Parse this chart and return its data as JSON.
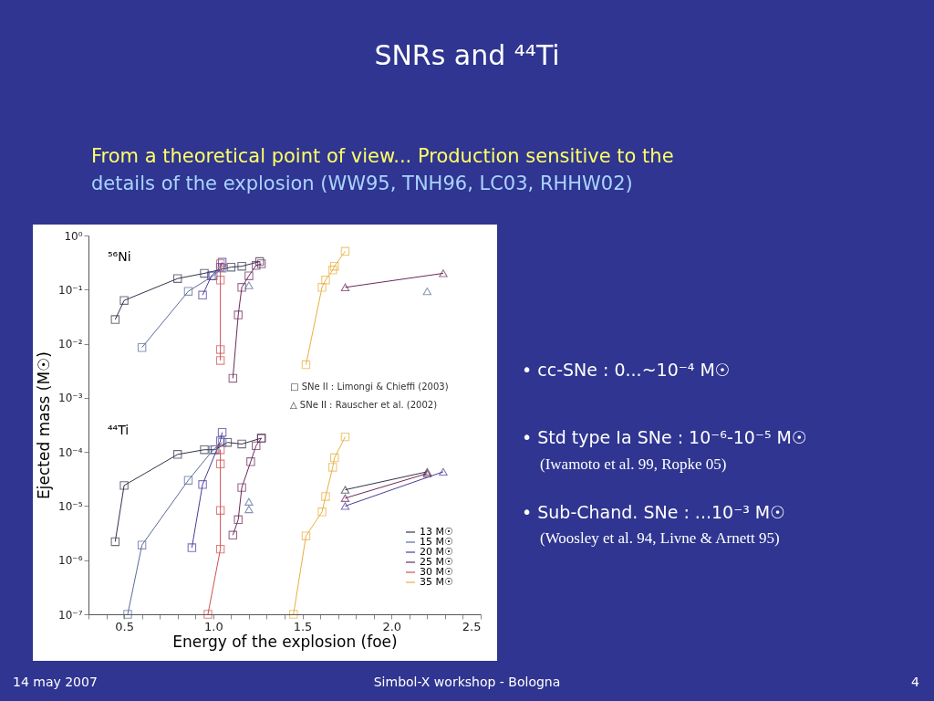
{
  "chart_data": {
    "type": "line",
    "title": "SNRs and ⁴⁴Ti",
    "subtitle": "From a theoretical point of view... Production sensitive to the details of the explosion (WW95, TNH96, LC03, RHHW02)",
    "xlabel": "Energy of the explosion (foe)",
    "ylabel": "Ejected mass (M☉)",
    "xlim": [
      0.3,
      2.5
    ],
    "ylim": [
      1e-07,
      1
    ],
    "log": "y",
    "grid": false,
    "legend": "bottom right",
    "line_style": "solid",
    "xticks": [
      {
        "value": 0.3,
        "label": null
      },
      {
        "value": 0.4,
        "label": null
      },
      {
        "value": 0.5,
        "label": "0.5"
      },
      {
        "value": 0.6,
        "label": null
      },
      {
        "value": 0.7,
        "label": null
      },
      {
        "value": 0.8,
        "label": null
      },
      {
        "value": 0.9,
        "label": null
      },
      {
        "value": 1.0,
        "label": "1.0"
      },
      {
        "value": 1.1,
        "label": null
      },
      {
        "value": 1.2,
        "label": null
      },
      {
        "value": 1.3,
        "label": null
      },
      {
        "value": 1.4,
        "label": null
      },
      {
        "value": 1.5,
        "label": "1.5"
      },
      {
        "value": 1.6,
        "label": null
      },
      {
        "value": 1.7,
        "label": null
      },
      {
        "value": 1.8,
        "label": null
      },
      {
        "value": 1.9,
        "label": null
      },
      {
        "value": 2.0,
        "label": "2.0"
      },
      {
        "value": 2.1,
        "label": null
      },
      {
        "value": 2.2,
        "label": null
      },
      {
        "value": 2.3,
        "label": null
      },
      {
        "value": 2.4,
        "label": null
      },
      {
        "value": 2.5,
        "label": "2.5"
      }
    ],
    "yticks": [
      {
        "value": 1e-07,
        "label": "10⁻⁷"
      },
      {
        "value": 1e-06,
        "label": "10⁻⁶"
      },
      {
        "value": 1e-05,
        "label": "10⁻⁵"
      },
      {
        "value": 0.0001,
        "label": "10⁻⁴"
      },
      {
        "value": 0.001,
        "label": "10⁻³"
      },
      {
        "value": 0.01,
        "label": "10⁻²"
      },
      {
        "value": 0.1,
        "label": "10⁻¹"
      },
      {
        "value": 1,
        "label": "10⁰"
      }
    ],
    "series": [
      {
        "name": "13 M☉",
        "color": "#33334a",
        "marker": "square",
        "x": [
          0.45,
          0.5,
          0.8,
          0.95,
          1.1,
          1.16,
          1.26
        ],
        "values": [
          0.028,
          0.063,
          0.16,
          0.2,
          0.26,
          0.27,
          0.33
        ]
      },
      {
        "name": "15 M☉",
        "color": "#5a6a9a",
        "marker": "square",
        "x": [
          0.6,
          0.86,
          1.0,
          1.05
        ],
        "values": [
          0.0085,
          0.093,
          0.18,
          0.25
        ]
      },
      {
        "name": "20 M☉",
        "color": "#4a3a9a",
        "marker": "square",
        "x": [
          0.94,
          0.99,
          1.04,
          1.05
        ],
        "values": [
          0.079,
          0.18,
          0.26,
          0.32
        ]
      },
      {
        "name": "25 M☉",
        "color": "#6a2a5a",
        "marker": "square",
        "x": [
          1.11,
          1.14,
          1.16,
          1.2,
          1.24,
          1.27
        ],
        "values": [
          0.0023,
          0.034,
          0.11,
          0.18,
          0.28,
          0.3
        ]
      },
      {
        "name": "30 M☉",
        "color": "#d05050",
        "marker": "square",
        "x": [
          1.04,
          1.04,
          1.04,
          1.04
        ],
        "values": [
          0.0049,
          0.0078,
          0.15,
          0.3
        ]
      },
      {
        "name": "35 M☉",
        "color": "#e8b040",
        "marker": "square",
        "x": [
          1.52,
          1.61,
          1.63,
          1.67,
          1.68,
          1.74
        ],
        "values": [
          0.0041,
          0.11,
          0.15,
          0.23,
          0.27,
          0.51
        ]
      },
      {
        "color": "#33334a",
        "marker": "square",
        "type": "line",
        "x": [
          0.45,
          0.5,
          0.8,
          0.95,
          1.01,
          1.08,
          1.16,
          1.27
        ],
        "values": [
          2.2e-06,
          2.4e-05,
          9e-05,
          0.00011,
          0.00011,
          0.00015,
          0.00014,
          0.00018
        ]
      },
      {
        "color": "#5a6a9a",
        "marker": "square",
        "type": "line",
        "x": [
          0.52,
          0.6,
          0.86,
          1.0,
          1.05
        ],
        "values": [
          1e-07,
          1.9e-06,
          3e-05,
          0.00011,
          0.00015
        ]
      },
      {
        "color": "#4a3a9a",
        "marker": "square",
        "type": "line",
        "x": [
          0.88,
          0.94,
          1.04,
          1.05
        ],
        "values": [
          1.7e-06,
          2.5e-05,
          0.00016,
          0.00023
        ]
      },
      {
        "color": "#6a2a5a",
        "marker": "square",
        "type": "line",
        "x": [
          1.11,
          1.14,
          1.16,
          1.21,
          1.24,
          1.27
        ],
        "values": [
          2.9e-06,
          5.6e-06,
          2.2e-05,
          6.6e-05,
          0.00013,
          0.00018
        ]
      },
      {
        "color": "#d05050",
        "marker": "square",
        "type": "line",
        "x": [
          0.97,
          1.04,
          1.04,
          1.04,
          1.04
        ],
        "values": [
          1e-07,
          1.6e-06,
          8.3e-06,
          6e-05,
          0.00011
        ]
      },
      {
        "color": "#e8b040",
        "marker": "square",
        "type": "line",
        "x": [
          1.45,
          1.52,
          1.61,
          1.63,
          1.67,
          1.68,
          1.74
        ],
        "values": [
          1e-07,
          2.8e-06,
          7.8e-06,
          1.5e-05,
          5.2e-05,
          7.8e-05,
          0.00019
        ]
      },
      {
        "color": "#6a2a5a",
        "marker": "triangle",
        "type": "line",
        "x": [
          1.74,
          2.29
        ],
        "values": [
          0.11,
          0.2
        ]
      },
      {
        "color": "#5a6a9a",
        "marker": "triangle",
        "type": "scatter",
        "x": [
          1.2,
          2.2
        ],
        "values": [
          0.12,
          0.093
        ]
      },
      {
        "color": "#33334a",
        "marker": "triangle",
        "type": "line",
        "x": [
          1.74,
          2.2
        ],
        "values": [
          2e-05,
          4.3e-05
        ]
      },
      {
        "color": "#6a2a5a",
        "marker": "triangle",
        "type": "line",
        "x": [
          1.74,
          2.2
        ],
        "values": [
          1.4e-05,
          4e-05
        ]
      },
      {
        "color": "#4a3a9a",
        "marker": "triangle",
        "type": "line",
        "x": [
          1.74,
          2.29
        ],
        "values": [
          1e-05,
          4.3e-05
        ]
      },
      {
        "color": "#5a6a9a",
        "marker": "triangle",
        "type": "scatter",
        "x": [
          1.2,
          1.2
        ],
        "values": [
          1.2e-05,
          8.7e-06
        ]
      }
    ],
    "annotations": [
      "⁵⁶Ni",
      "⁴⁴Ti",
      "□ SNe II : Limongi & Chieffi (2003)",
      "△ SNe II : Rauscher et al. (2002)",
      "• cc-SNe : 0...~10⁻⁴ M☉",
      "• Std type Ia SNe : 10⁻⁶-10⁻⁵ M☉",
      "(Iwamoto et al. 99, Ropke 05)",
      "• Sub-Chand. SNe : ...10⁻³ M☉",
      "(Woosley et al. 94, Livne & Arnett 95)",
      "14 may 2007",
      "Simbol-X workshop - Bologna",
      "4"
    ]
  }
}
